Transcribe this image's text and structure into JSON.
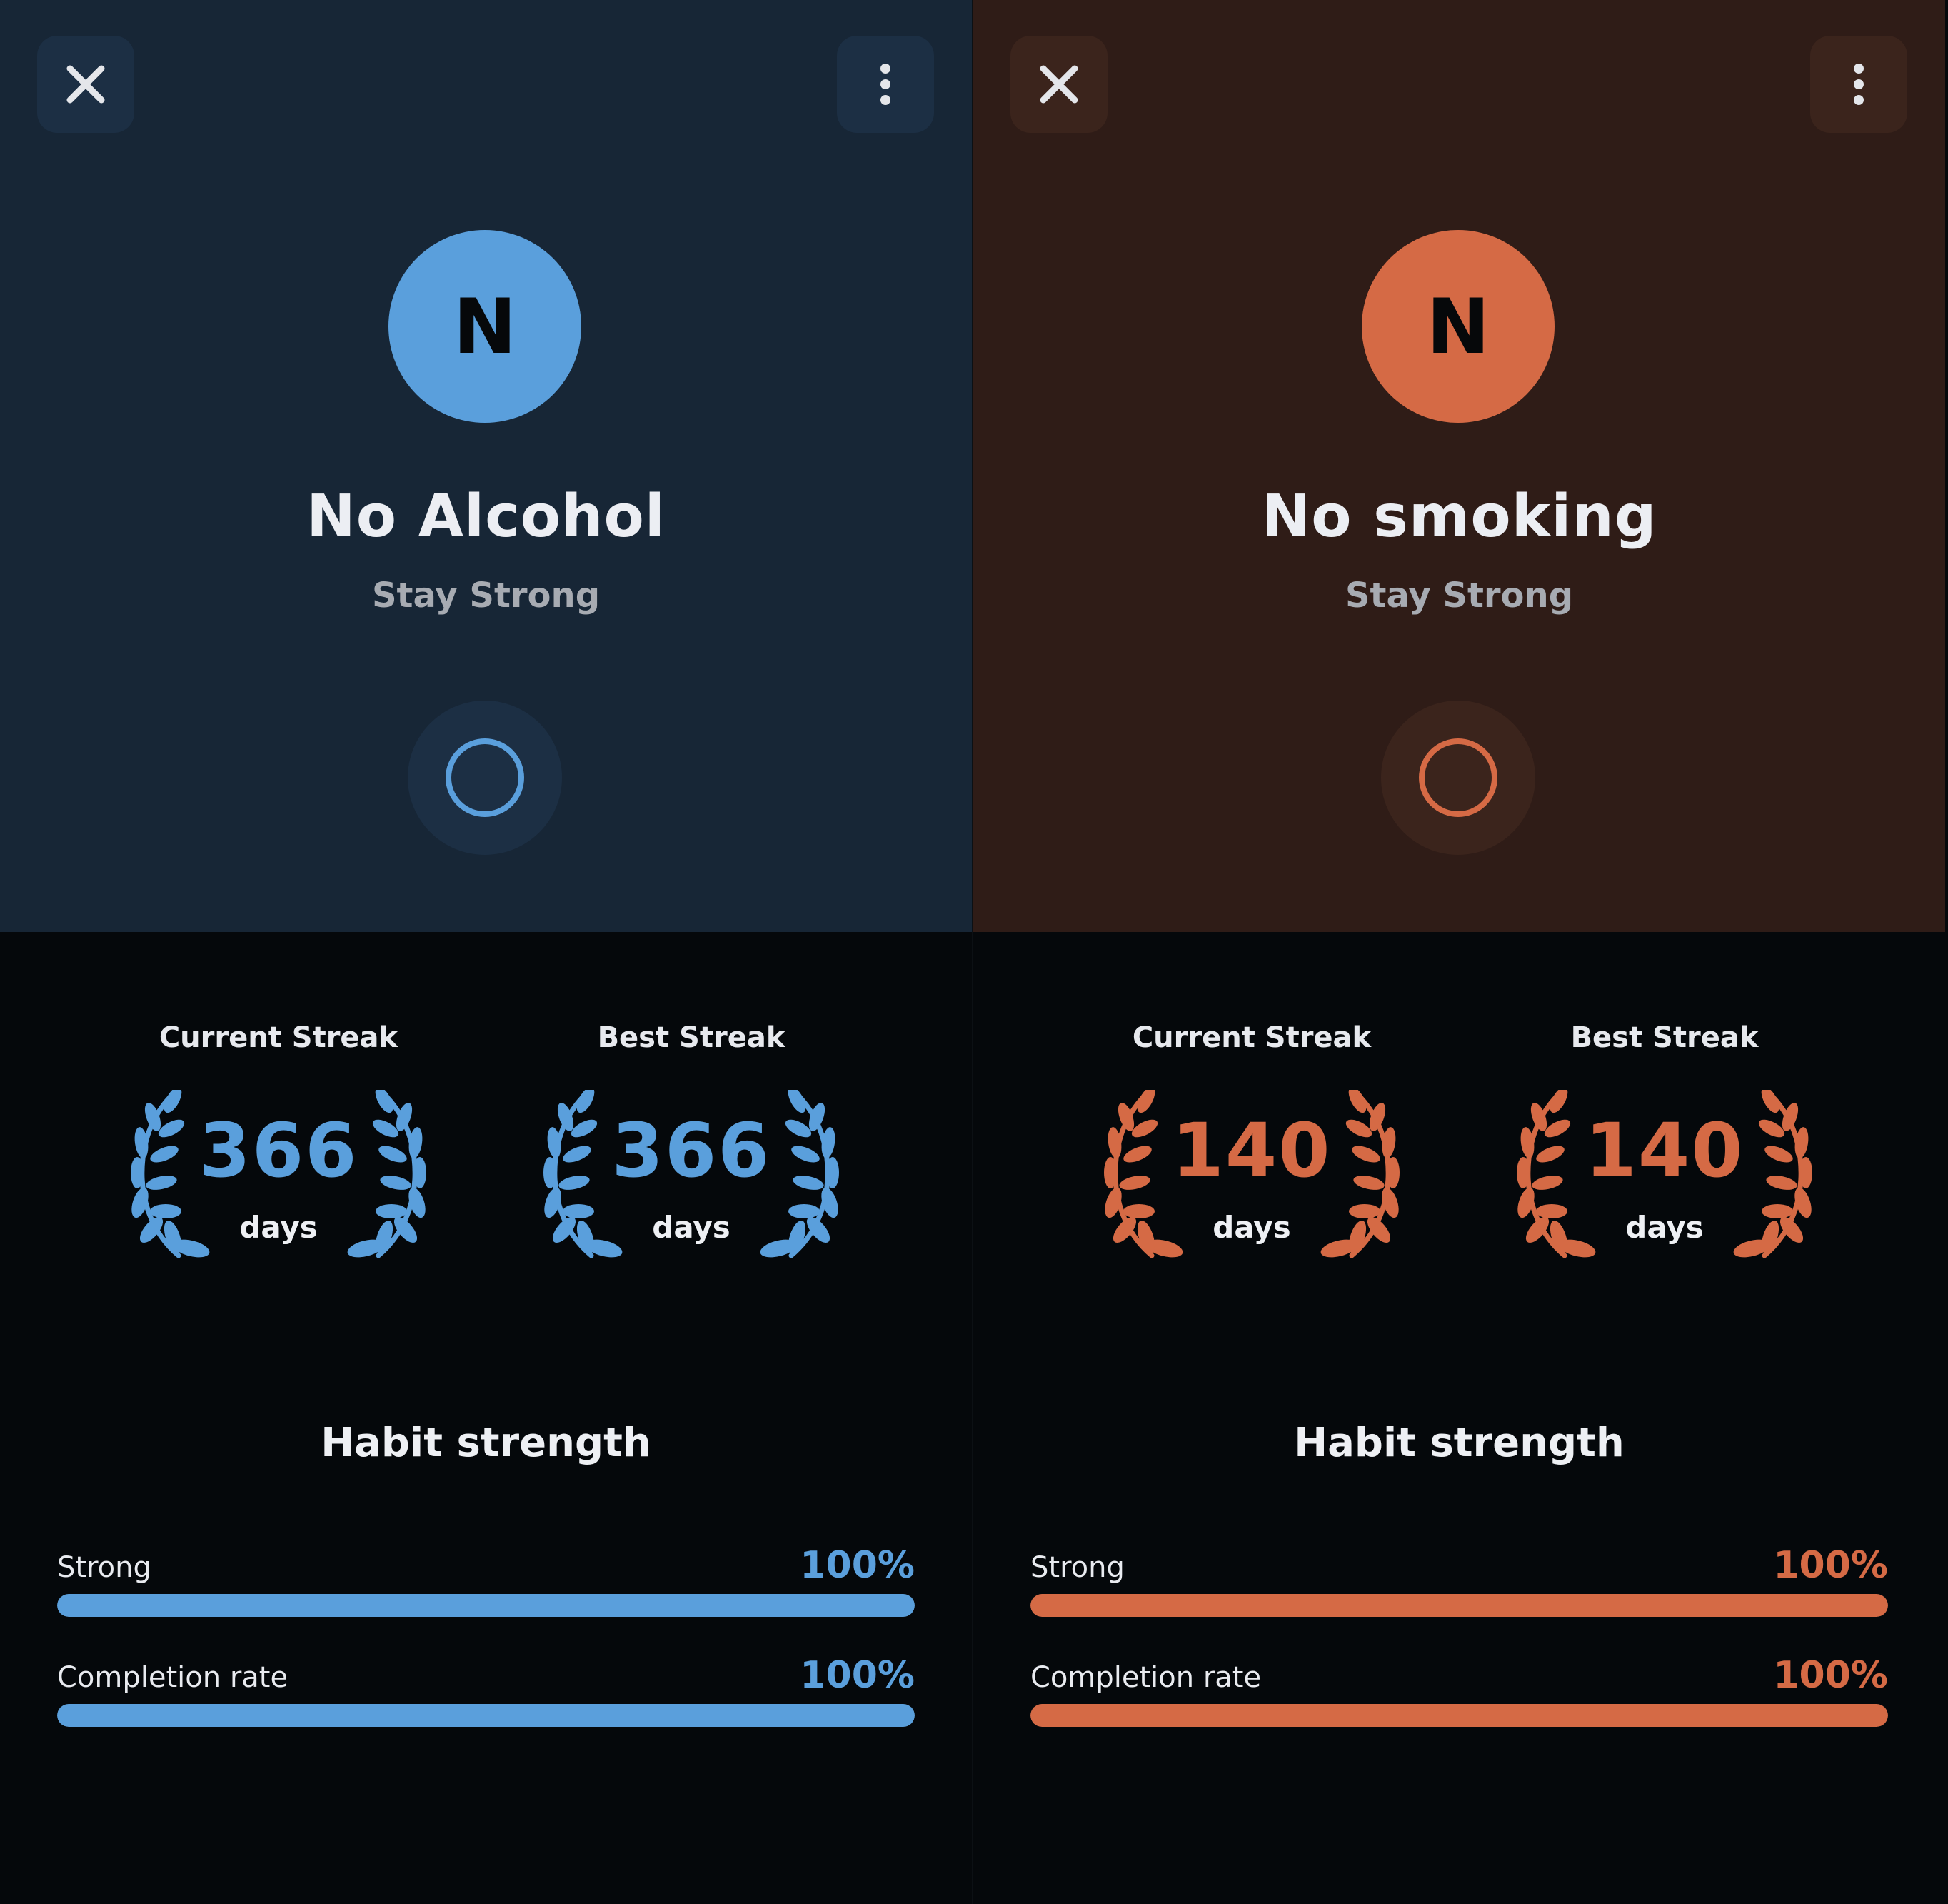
{
  "habits": [
    {
      "title": "No Alcohol",
      "subtitle": "Stay Strong",
      "avatar_letter": "N",
      "colors": {
        "accent": "#5a9fdc",
        "header": "#172636",
        "button": "#1c2f44"
      },
      "icons": {
        "close": "close-icon",
        "menu": "more-vertical-icon",
        "check": "circle-outline-icon",
        "laurel": "laurel-icon"
      },
      "current_streak": {
        "label": "Current Streak",
        "value": "366",
        "unit": "days"
      },
      "best_streak": {
        "label": "Best Streak",
        "value": "366",
        "unit": "days"
      },
      "strength": {
        "title": "Habit strength",
        "metrics": [
          {
            "label": "Strong",
            "value": "100%",
            "fraction": 1.0
          },
          {
            "label": "Completion rate",
            "value": "100%",
            "fraction": 1.0
          }
        ]
      }
    },
    {
      "title": "No smoking",
      "subtitle": "Stay Strong",
      "avatar_letter": "N",
      "colors": {
        "accent": "#d56a45",
        "header": "#2f1c17",
        "button": "#3b241c"
      },
      "icons": {
        "close": "close-icon",
        "menu": "more-vertical-icon",
        "check": "circle-outline-icon",
        "laurel": "laurel-icon"
      },
      "current_streak": {
        "label": "Current Streak",
        "value": "140",
        "unit": "days"
      },
      "best_streak": {
        "label": "Best Streak",
        "value": "140",
        "unit": "days"
      },
      "strength": {
        "title": "Habit strength",
        "metrics": [
          {
            "label": "Strong",
            "value": "100%",
            "fraction": 1.0
          },
          {
            "label": "Completion rate",
            "value": "100%",
            "fraction": 1.0
          }
        ]
      }
    }
  ]
}
